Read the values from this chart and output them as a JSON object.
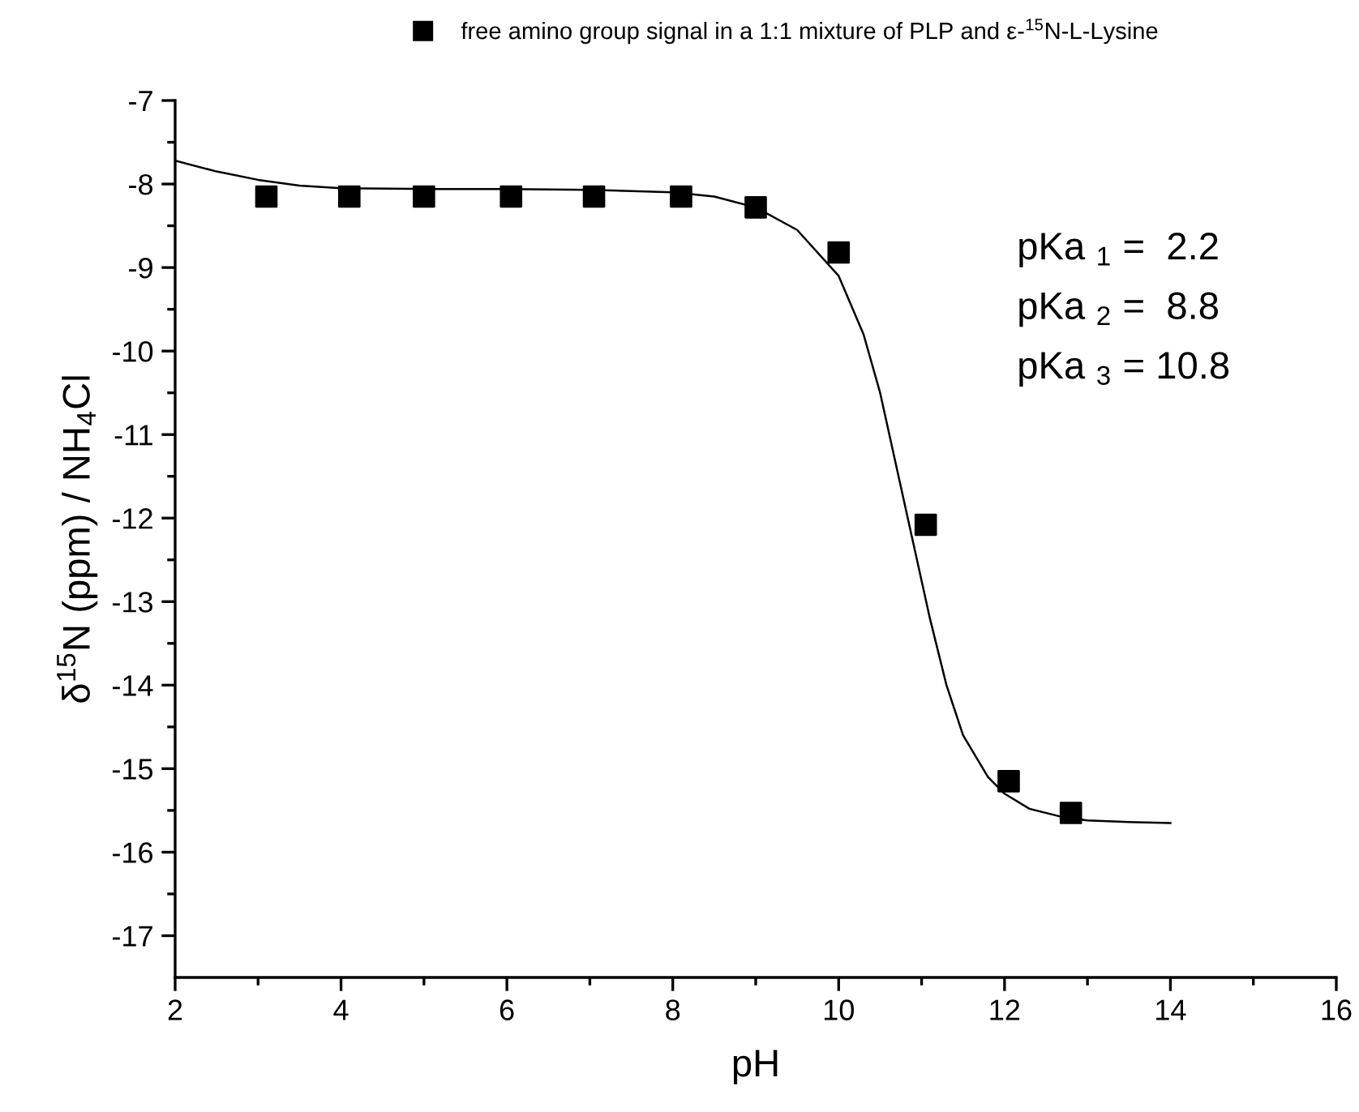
{
  "chart_data": {
    "type": "scatter",
    "xlabel": "pH",
    "ylabel": "δ$^{15}$N (ppm) / NH$_{4}$Cl",
    "xlim": [
      2,
      16
    ],
    "xticks": [
      2,
      4,
      6,
      8,
      10,
      12,
      14,
      16
    ],
    "ylim": [
      -17.5,
      -7
    ],
    "yticks": [
      -17,
      -16,
      -15,
      -14,
      -13,
      -12,
      -11,
      -10,
      -9,
      -8,
      -7
    ],
    "grid": false,
    "legend": "top",
    "marker": "square",
    "series": [
      {
        "name": "free amino group signal in a 1:1 mixture of PLP and ε-$^{15}$N-L-Lysine",
        "color": "#000000",
        "x": [
          3.1,
          4.1,
          5.0,
          6.05,
          7.05,
          8.1,
          9.0,
          10.0,
          11.05,
          12.05,
          12.8
        ],
        "values": [
          -8.15,
          -8.15,
          -8.15,
          -8.15,
          -8.15,
          -8.15,
          -8.28,
          -8.82,
          -12.08,
          -15.15,
          -15.53
        ]
      },
      {
        "type": "line",
        "color": "#000000",
        "marker": "none",
        "line_style": "solid",
        "x": [
          2,
          2.5,
          3,
          3.5,
          4,
          5,
          6,
          7,
          8,
          8.5,
          9,
          9.5,
          10,
          10.3,
          10.5,
          10.7,
          10.9,
          11.1,
          11.3,
          11.5,
          11.8,
          12,
          12.3,
          12.7,
          13,
          13.5,
          14
        ],
        "values": [
          -7.72,
          -7.85,
          -7.95,
          -8.02,
          -8.05,
          -8.06,
          -8.06,
          -8.07,
          -8.1,
          -8.15,
          -8.28,
          -8.55,
          -9.1,
          -9.8,
          -10.5,
          -11.4,
          -12.3,
          -13.2,
          -14.0,
          -14.6,
          -15.1,
          -15.3,
          -15.48,
          -15.58,
          -15.62,
          -15.64,
          -15.65
        ]
      }
    ],
    "annotations": [
      "pKa $_{1}$ =  2.2",
      "pKa $_{2}$ =  8.8",
      "pKa $_{3}$ = 10.8"
    ]
  }
}
